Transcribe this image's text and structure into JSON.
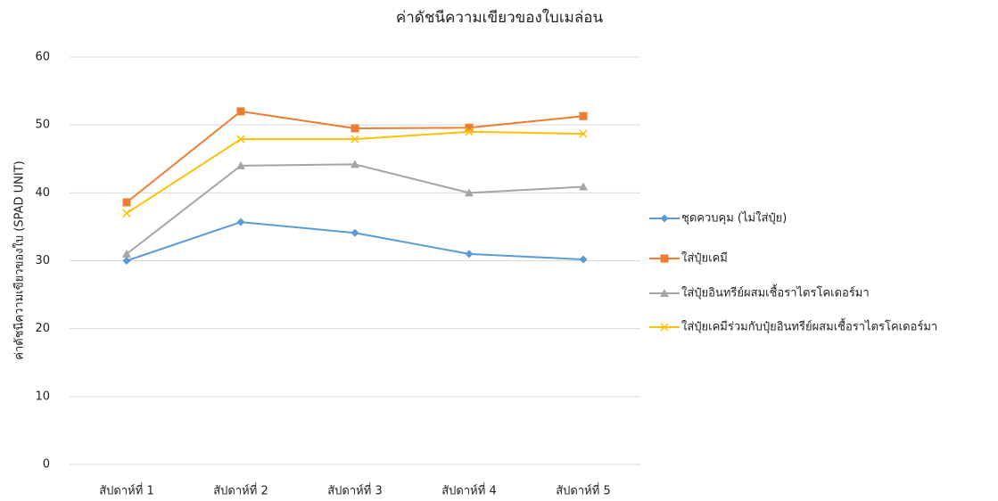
{
  "chart_data": {
    "type": "line",
    "title": "ค่าดัชนีความเขียวของใบเมล่อน",
    "y_label": "ค่าดัชนีความเขียวของใบ  (SPAD UNIT)",
    "categories": [
      "สัปดาห์ที่  1",
      "สัปดาห์ที่  2",
      "สัปดาห์ที่  3",
      "สัปดาห์ที่  4",
      "สัปดาห์ที่  5"
    ],
    "series": [
      {
        "name": "ชุดควบคุม (ไม่ใส่ปุ๋ย)",
        "color": "#5b9bd5",
        "marker": "diamond",
        "values": [
          30.0,
          35.7,
          34.1,
          31.0,
          30.2
        ]
      },
      {
        "name": "ใส่ปุ๋ยเคมี",
        "color": "#ed7d31",
        "marker": "square",
        "values": [
          38.6,
          52.0,
          49.5,
          49.6,
          51.3
        ]
      },
      {
        "name": "ใส่ปุ๋ยอินทรีย์ผสมเชื้อราไตรโคเดอร์มา",
        "color": "#a5a5a5",
        "marker": "triangle",
        "values": [
          31.0,
          44.0,
          44.2,
          40.0,
          40.9
        ]
      },
      {
        "name": "ใส่ปุ๋ยเคมีร่วมกับปุ๋ยอินทรีย์ผสมเชื้อราไตรโคเดอร์มา",
        "color": "#ffc000",
        "marker": "x",
        "values": [
          37.0,
          47.9,
          47.9,
          49.0,
          48.7
        ]
      }
    ],
    "ylim": [
      0,
      60
    ],
    "yticks": [
      0,
      10,
      20,
      30,
      40,
      50,
      60
    ],
    "grid": true,
    "legend": "right"
  }
}
